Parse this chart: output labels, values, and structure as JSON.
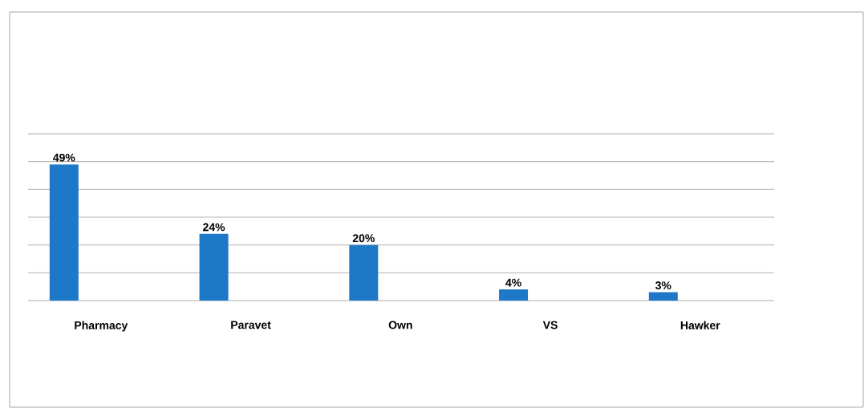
{
  "chart_data": {
    "type": "bar",
    "categories": [
      "Pharmacy",
      "Paravet",
      "Own",
      "VS",
      "Hawker"
    ],
    "values": [
      49,
      24,
      20,
      4,
      3
    ],
    "value_labels": [
      "49%",
      "24%",
      "20%",
      "4%",
      "3%"
    ],
    "color": "#1e78c8",
    "ylim": [
      0,
      60
    ],
    "yticks": [
      {
        "value": 0,
        "label": null
      },
      {
        "value": 10,
        "label": null
      },
      {
        "value": 20,
        "label": null
      },
      {
        "value": 30,
        "label": null
      },
      {
        "value": 40,
        "label": null
      },
      {
        "value": 50,
        "label": null
      },
      {
        "value": 60,
        "label": null
      }
    ],
    "tick_labels": "x",
    "grid": "y"
  }
}
